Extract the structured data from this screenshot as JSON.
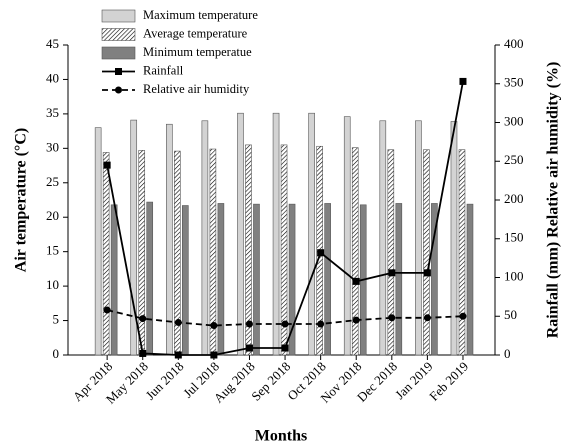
{
  "chart_data": {
    "type": "bar",
    "categories": [
      "Apr 2018",
      "May 2018",
      "Jun 2018",
      "Jul 2018",
      "Aug 2018",
      "Sep 2018",
      "Oct 2018",
      "Nov 2018",
      "Dec 2018",
      "Jan 2019",
      "Feb 2019"
    ],
    "series": [
      {
        "name": "Maximum temperature",
        "type": "bar",
        "color": "#d3d3d3",
        "values": [
          33,
          34.1,
          33.5,
          34,
          35.1,
          35.1,
          35.1,
          34.6,
          34,
          34,
          33.9
        ]
      },
      {
        "name": "Average temperature",
        "type": "bar",
        "color": "#ffffff",
        "pattern": "hatch",
        "values": [
          29.4,
          29.7,
          29.6,
          29.9,
          30.5,
          30.5,
          30.3,
          30.1,
          29.8,
          29.8,
          29.8
        ]
      },
      {
        "name": "Minimum temperatue",
        "type": "bar",
        "color": "#808080",
        "values": [
          21.8,
          22.2,
          21.7,
          22,
          21.9,
          21.9,
          22,
          21.8,
          22,
          22,
          21.9
        ]
      },
      {
        "name": "Rainfall",
        "type": "line",
        "axis": "y2",
        "color": "#000000",
        "marker": "square",
        "line_style": "solid",
        "values": [
          245,
          2,
          0,
          0,
          9,
          9,
          132,
          95,
          106,
          106,
          353
        ]
      },
      {
        "name": "Relative air humidity",
        "type": "line",
        "axis": "y2",
        "color": "#000000",
        "marker": "circle",
        "line_style": "dashed",
        "values": [
          58,
          47,
          42,
          38,
          40,
          40,
          40,
          45,
          48,
          48,
          50
        ]
      }
    ],
    "xlabel": "Months",
    "ylabel": "Air temperature (°C)",
    "y2label": "Rainfall (mm) Relative air humidity (%)",
    "ylim": [
      0,
      45
    ],
    "yticks": [
      0,
      5,
      10,
      15,
      20,
      25,
      30,
      35,
      40,
      45
    ],
    "y2lim": [
      0,
      400
    ],
    "y2ticks": [
      0,
      50,
      100,
      150,
      200,
      250,
      300,
      350,
      400
    ],
    "legend": "upper-left"
  }
}
